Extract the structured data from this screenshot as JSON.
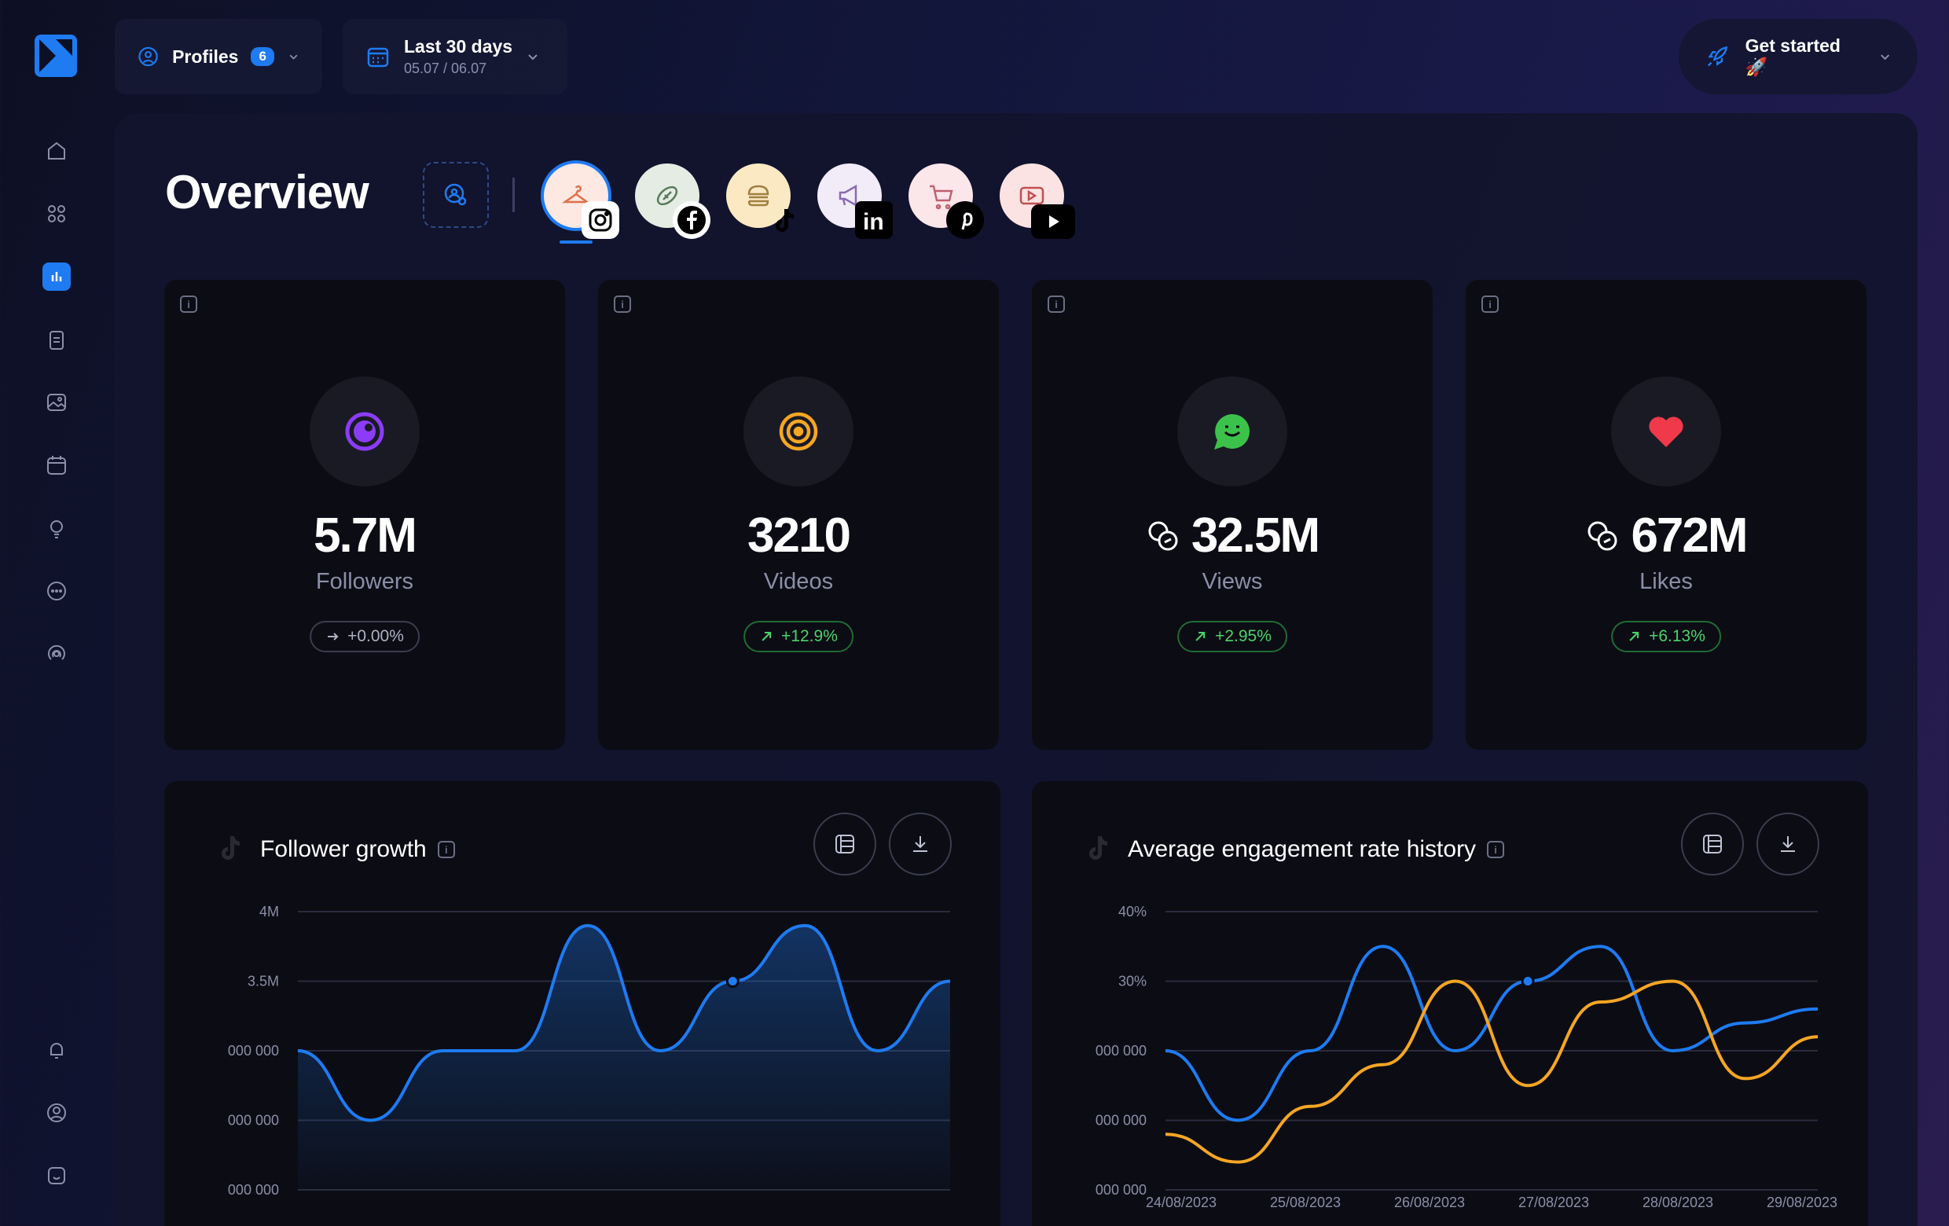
{
  "topbar": {
    "profiles_label": "Profiles",
    "profiles_count": "6",
    "date_range_label": "Last 30 days",
    "date_range_sub": "05.07 / 06.07",
    "get_started_label": "Get started 🚀"
  },
  "page": {
    "title": "Overview"
  },
  "stats": [
    {
      "value": "5.7M",
      "label": "Followers",
      "delta": "+0.00%",
      "trend": "flat",
      "icon": "eye-icon",
      "color": "#8b3cf7"
    },
    {
      "value": "3210",
      "label": "Videos",
      "delta": "+12.9%",
      "trend": "up",
      "icon": "target-icon",
      "color": "#f5a623"
    },
    {
      "value": "32.5M",
      "label": "Views",
      "delta": "+2.95%",
      "trend": "up",
      "icon": "smile-chat-icon",
      "color": "#3cc24b"
    },
    {
      "value": "672M",
      "label": "Likes",
      "delta": "+6.13%",
      "trend": "up",
      "icon": "heart-icon",
      "color": "#f0394a"
    }
  ],
  "charts": {
    "follower": {
      "title": "Follower growth"
    },
    "engagement": {
      "title": "Average engagement rate history"
    }
  },
  "chart_data": [
    {
      "type": "area",
      "title": "Follower growth",
      "y_ticks": [
        "4M",
        "3.5M",
        "000 000",
        "000 000",
        "000 000"
      ],
      "series": [
        {
          "values": [
            3.0,
            2.5,
            3.0,
            3.0,
            3.9,
            3.0,
            3.5,
            3.9,
            3.0,
            3.5
          ],
          "color": "#1e7bf2"
        }
      ]
    },
    {
      "type": "line",
      "title": "Average engagement rate history",
      "y_ticks": [
        "40%",
        "30%",
        "000 000",
        "000 000",
        "000 000"
      ],
      "x_ticks": [
        "24/08/2023",
        "25/08/2023",
        "26/08/2023",
        "27/08/2023",
        "28/08/2023",
        "29/08/2023"
      ],
      "series": [
        {
          "values": [
            20,
            10,
            20,
            35,
            20,
            30,
            35,
            20,
            24,
            26
          ],
          "color": "#1e7bf2"
        },
        {
          "values": [
            8,
            4,
            12,
            18,
            30,
            15,
            27,
            30,
            16,
            22
          ],
          "color": "#f5a623"
        }
      ]
    }
  ]
}
